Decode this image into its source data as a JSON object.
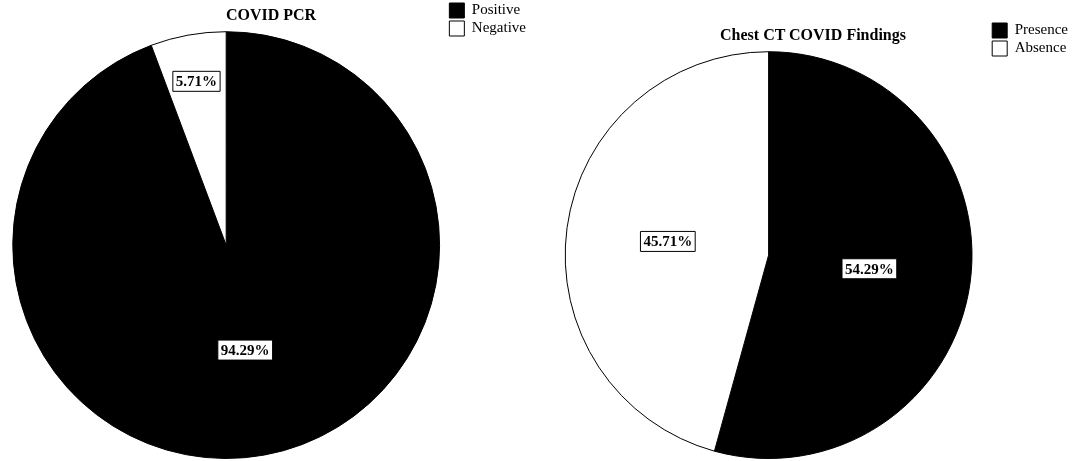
{
  "chart_data": [
    {
      "type": "pie",
      "title": "COVID PCR",
      "categories": [
        "Positive",
        "Negative"
      ],
      "values": [
        94.29,
        5.71
      ],
      "colors": [
        "#000000",
        "#ffffff"
      ],
      "value_labels": [
        "94.29%",
        "5.71%"
      ],
      "legend": "top right"
    },
    {
      "type": "pie",
      "title": "Chest CT COVID Findings",
      "categories": [
        "Presence",
        "Absence"
      ],
      "values": [
        54.29,
        45.71
      ],
      "colors": [
        "#000000",
        "#ffffff"
      ],
      "value_labels": [
        "54.29%",
        "45.71%"
      ],
      "legend": "top right"
    }
  ]
}
